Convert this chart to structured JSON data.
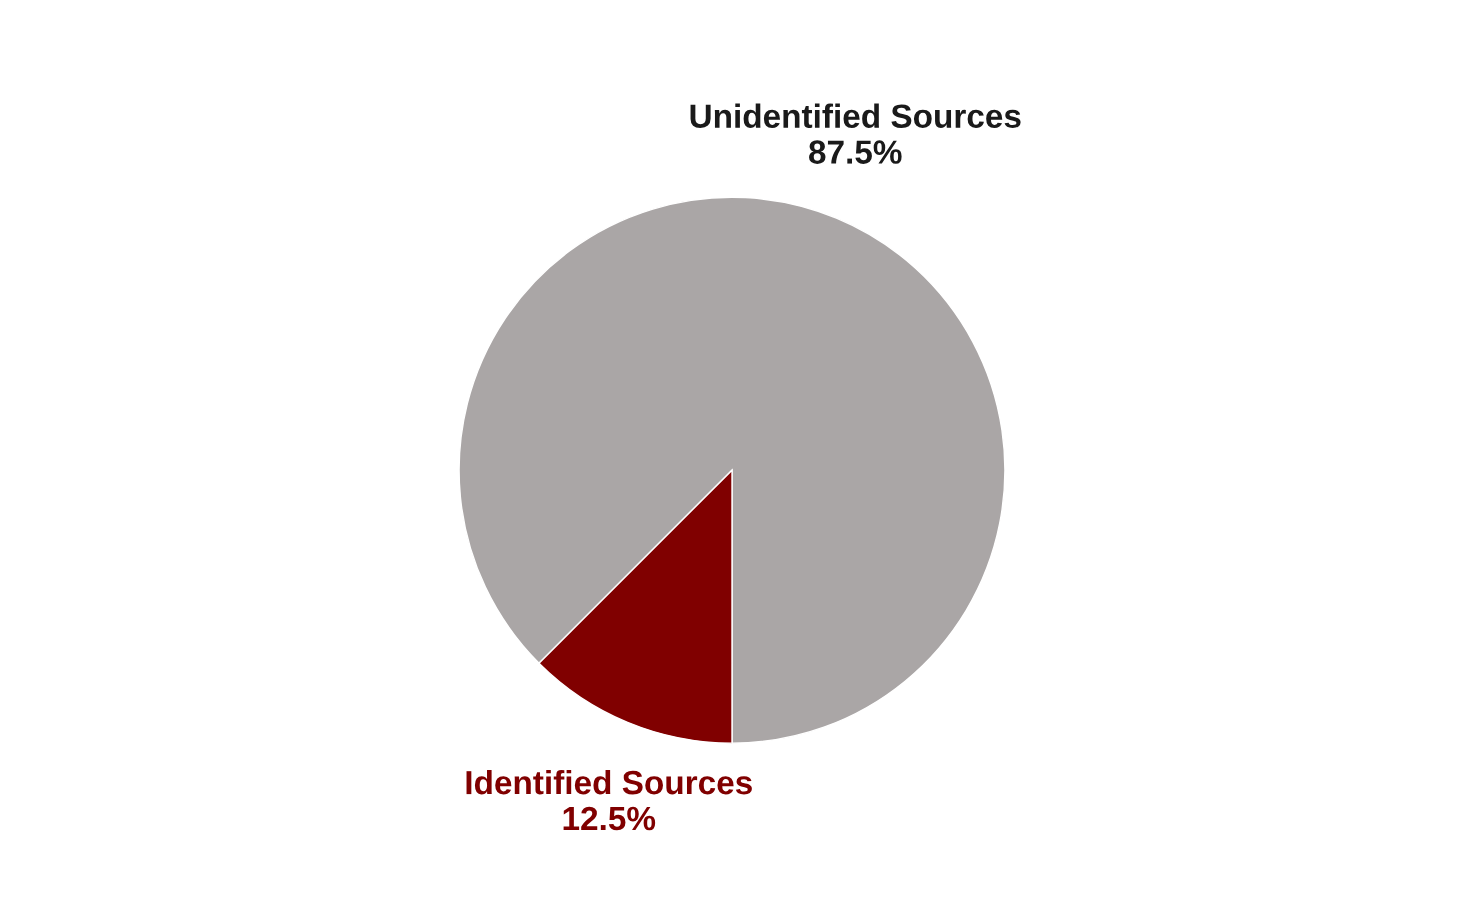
{
  "chart_data": {
    "type": "pie",
    "categories": [
      "Unidentified Sources",
      "Identified Sources"
    ],
    "values": [
      87.5,
      12.5
    ],
    "value_labels": [
      "87.5%",
      "12.5%"
    ],
    "colors": [
      "#aaa6a6",
      "#800000"
    ]
  }
}
